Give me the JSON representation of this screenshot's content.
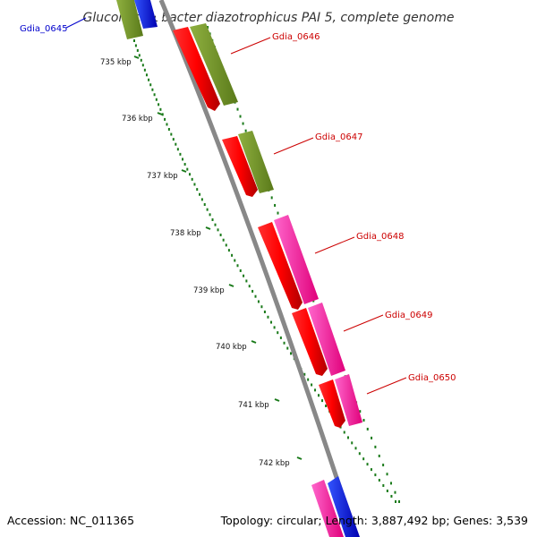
{
  "title": "Gluconacetobacter diazotrophicus PAI 5, complete genome",
  "footer": {
    "accession": "Accession: NC_011365",
    "summary": "Topology: circular; Length: 3,887,492 bp; Genes: 3,539"
  },
  "ticks": [
    {
      "label": "735 kbp"
    },
    {
      "label": "736 kbp"
    },
    {
      "label": "737 kbp"
    },
    {
      "label": "738 kbp"
    },
    {
      "label": "739 kbp"
    },
    {
      "label": "740 kbp"
    },
    {
      "label": "741 kbp"
    },
    {
      "label": "742 kbp"
    }
  ],
  "gene_labels": [
    {
      "text": "Gdia_0645",
      "color": "#0000cc"
    },
    {
      "text": "Gdia_0646",
      "color": "#cc0000"
    },
    {
      "text": "Gdia_0647",
      "color": "#cc0000"
    },
    {
      "text": "Gdia_0648",
      "color": "#cc0000"
    },
    {
      "text": "Gdia_0649",
      "color": "#cc0000"
    },
    {
      "text": "Gdia_0650",
      "color": "#cc0000"
    }
  ],
  "colors": {
    "cds": "#ff0000",
    "olive_track": "#6b8e23",
    "magenta_track": "#ff1493",
    "blue_track": "#0000ff",
    "backbone": "#888888",
    "tick_marks": "#1a7a1a"
  }
}
